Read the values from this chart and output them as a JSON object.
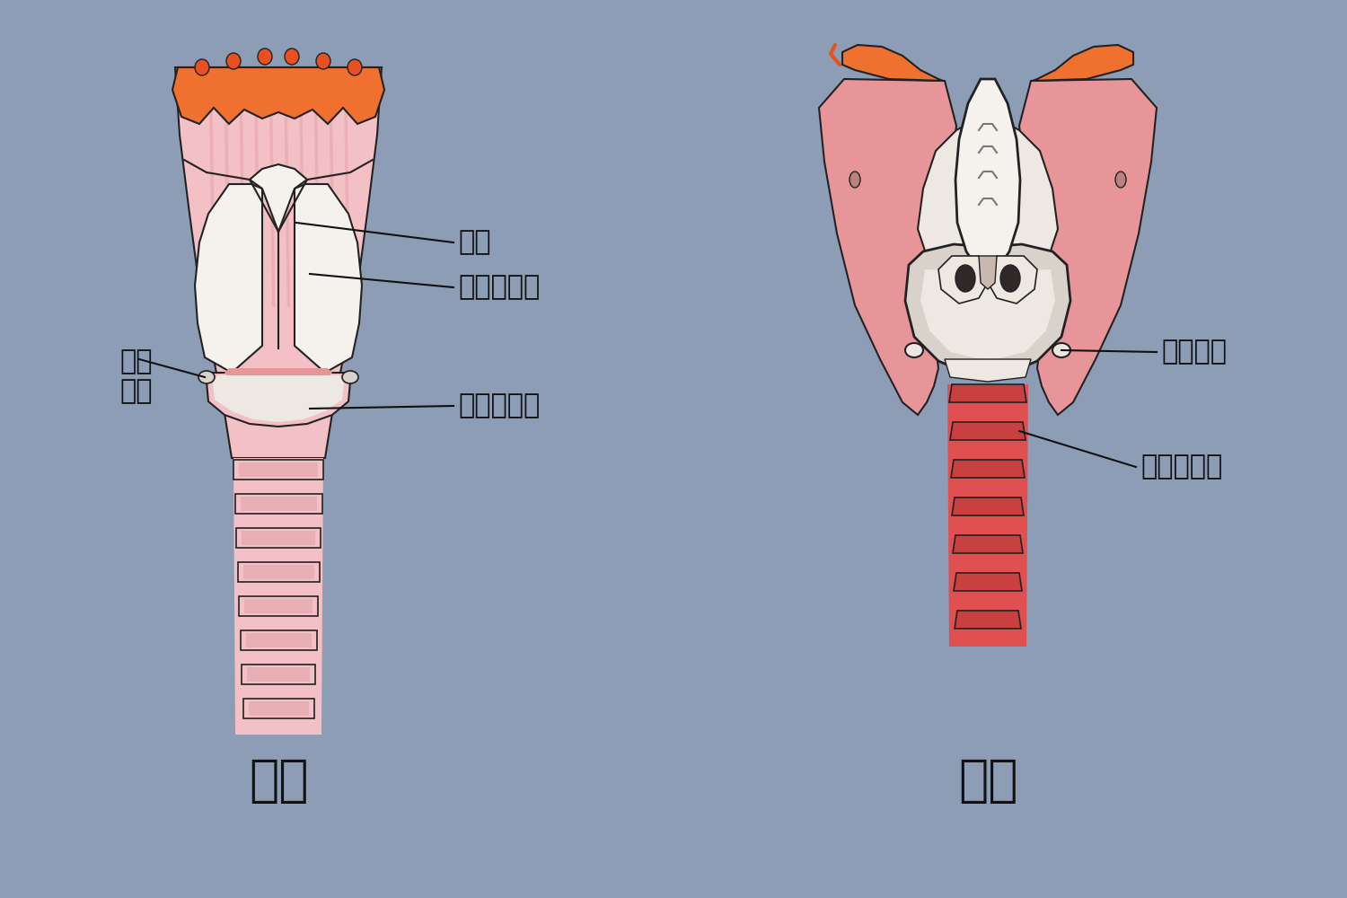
{
  "bg_color": "#8c9db5",
  "title_front": "前面",
  "title_back": "后面",
  "labels": {
    "hou_jie": "喉结",
    "jia_zhuang": "甲状软骨板",
    "huan_jia_1": "环甲\n关节",
    "huan_zhuang_gong": "环状软骨弓",
    "huan_jia_2": "环甲关节",
    "huan_zhuang_ban": "环状软骨板"
  },
  "font_size_label": 22,
  "font_size_title": 40,
  "colors": {
    "pink_light": "#f2c0c5",
    "pink_mid": "#e8959a",
    "pink_dark": "#d96060",
    "orange_bright": "#f07030",
    "orange_dark": "#e85020",
    "bone_white": "#ede8e2",
    "bone_light": "#f5f2ee",
    "bone_gray": "#d8d2ca",
    "outline": "#222222",
    "trachea_pink": "#e8b0b5",
    "red_trachea": "#e05050"
  }
}
